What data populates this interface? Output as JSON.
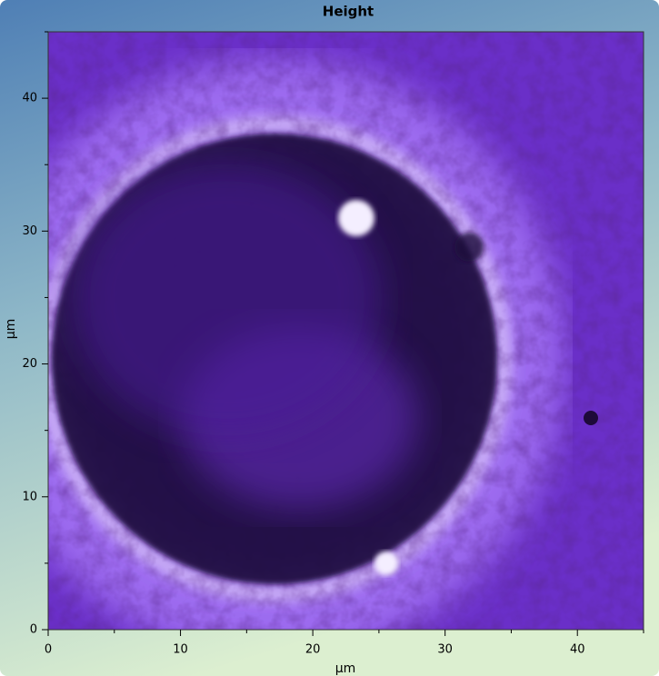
{
  "chart_data": {
    "type": "image",
    "title": "Height",
    "x_label": "µm",
    "y_label": "µm",
    "xlim": [
      0,
      45
    ],
    "ylim": [
      0,
      45
    ],
    "xticks": [
      0,
      10,
      20,
      30,
      40
    ],
    "yticks": [
      0,
      10,
      20,
      30,
      40
    ],
    "xminor_ticks": [
      5,
      15,
      25,
      35,
      45
    ],
    "yminor_ticks": [
      5,
      15,
      25,
      35,
      45
    ],
    "colormap": [
      "#1e0a3a",
      "#6a2fc8",
      "#9d6cf0",
      "#f4eeff"
    ]
  }
}
